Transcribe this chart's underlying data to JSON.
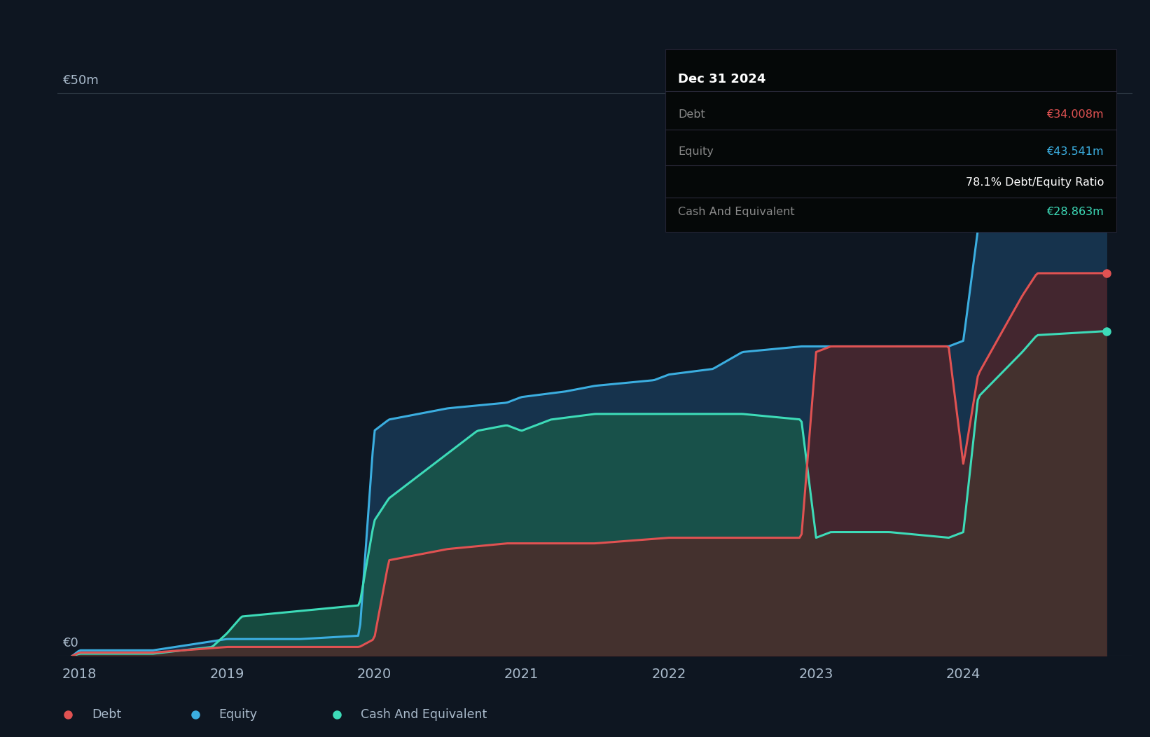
{
  "bg_color": "#0e1621",
  "plot_bg_color": "#0e1621",
  "ylabel_tick": "€50m",
  "ylabel_zero": "€0",
  "debt_color": "#e05252",
  "equity_color": "#3baee0",
  "cash_color": "#3ddbb8",
  "equity_fill_color": "#1a3d5c",
  "cash_fill_color": "#1a5c4a",
  "debt_fill_color": "#5c2020",
  "grid_color": "#2a3540",
  "text_color": "#aabbcc",
  "annotation_bg": "#050808",
  "annotation_title": "Dec 31 2024",
  "annotation_debt_label": "Debt",
  "annotation_debt_value": "€34.008m",
  "annotation_equity_label": "Equity",
  "annotation_equity_value": "€43.541m",
  "annotation_ratio": "78.1% Debt/Equity Ratio",
  "annotation_cash_label": "Cash And Equivalent",
  "annotation_cash_value": "€28.863m",
  "legend_debt": "Debt",
  "legend_equity": "Equity",
  "legend_cash": "Cash And Equivalent",
  "debt_data": {
    "dates": [
      2017.95,
      2018.0,
      2018.5,
      2019.0,
      2019.5,
      2019.9,
      2020.0,
      2020.1,
      2020.5,
      2020.9,
      2021.0,
      2021.5,
      2022.0,
      2022.5,
      2022.9,
      2023.0,
      2023.1,
      2023.5,
      2023.9,
      2024.0,
      2024.1,
      2024.4,
      2024.5,
      2024.9,
      2024.97
    ],
    "values": [
      0.0,
      0.3,
      0.3,
      0.8,
      0.8,
      0.8,
      1.5,
      8.5,
      9.5,
      10.0,
      10.0,
      10.0,
      10.5,
      10.5,
      10.5,
      27.0,
      27.5,
      27.5,
      27.5,
      17.0,
      25.0,
      32.0,
      34.0,
      34.0,
      34.008
    ]
  },
  "equity_data": {
    "dates": [
      2017.95,
      2018.0,
      2018.5,
      2019.0,
      2019.5,
      2019.9,
      2020.0,
      2020.1,
      2020.5,
      2020.9,
      2021.0,
      2021.3,
      2021.5,
      2021.9,
      2022.0,
      2022.3,
      2022.5,
      2022.9,
      2023.0,
      2023.5,
      2023.9,
      2024.0,
      2024.1,
      2024.4,
      2024.5,
      2024.9,
      2024.97
    ],
    "values": [
      0.0,
      0.5,
      0.5,
      1.5,
      1.5,
      1.8,
      20.0,
      21.0,
      22.0,
      22.5,
      23.0,
      23.5,
      24.0,
      24.5,
      25.0,
      25.5,
      27.0,
      27.5,
      27.5,
      27.5,
      27.5,
      28.0,
      38.0,
      42.0,
      43.0,
      43.5,
      43.541
    ]
  },
  "cash_data": {
    "dates": [
      2017.95,
      2018.0,
      2018.5,
      2018.9,
      2019.0,
      2019.1,
      2019.5,
      2019.9,
      2020.0,
      2020.1,
      2020.5,
      2020.7,
      2020.9,
      2021.0,
      2021.2,
      2021.5,
      2021.9,
      2022.0,
      2022.5,
      2022.9,
      2023.0,
      2023.1,
      2023.5,
      2023.9,
      2024.0,
      2024.1,
      2024.4,
      2024.5,
      2024.9,
      2024.97
    ],
    "values": [
      0.0,
      0.2,
      0.2,
      0.8,
      2.0,
      3.5,
      4.0,
      4.5,
      12.0,
      14.0,
      18.0,
      20.0,
      20.5,
      20.0,
      21.0,
      21.5,
      21.5,
      21.5,
      21.5,
      21.0,
      10.5,
      11.0,
      11.0,
      10.5,
      11.0,
      23.0,
      27.0,
      28.5,
      28.8,
      28.863
    ]
  },
  "ylim": [
    0,
    55
  ],
  "xlim": [
    2017.85,
    2025.15
  ],
  "xticks": [
    2018,
    2019,
    2020,
    2021,
    2022,
    2023,
    2024
  ],
  "ytick_50": 50,
  "ytick_0": 0
}
